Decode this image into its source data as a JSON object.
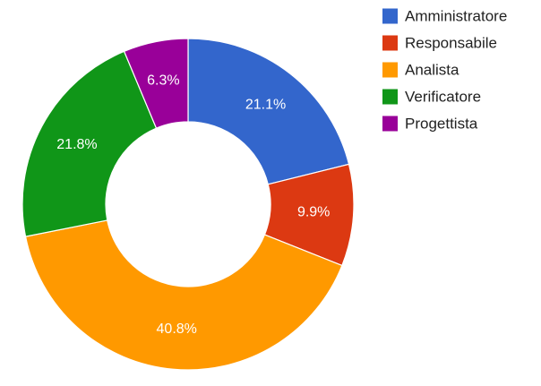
{
  "chart_data": {
    "type": "pie",
    "donut": true,
    "legend_position": "right",
    "slices": [
      {
        "name": "Amministratore",
        "value": 21.1,
        "label": "21.1%",
        "color": "#3366cc"
      },
      {
        "name": "Responsabile",
        "value": 9.9,
        "label": "9.9%",
        "color": "#dc3912"
      },
      {
        "name": "Analista",
        "value": 40.8,
        "label": "40.8%",
        "color": "#ff9900"
      },
      {
        "name": "Verificatore",
        "value": 21.8,
        "label": "21.8%",
        "color": "#109618"
      },
      {
        "name": "Progettista",
        "value": 6.3,
        "label": "6.3%",
        "color": "#990099"
      }
    ]
  }
}
